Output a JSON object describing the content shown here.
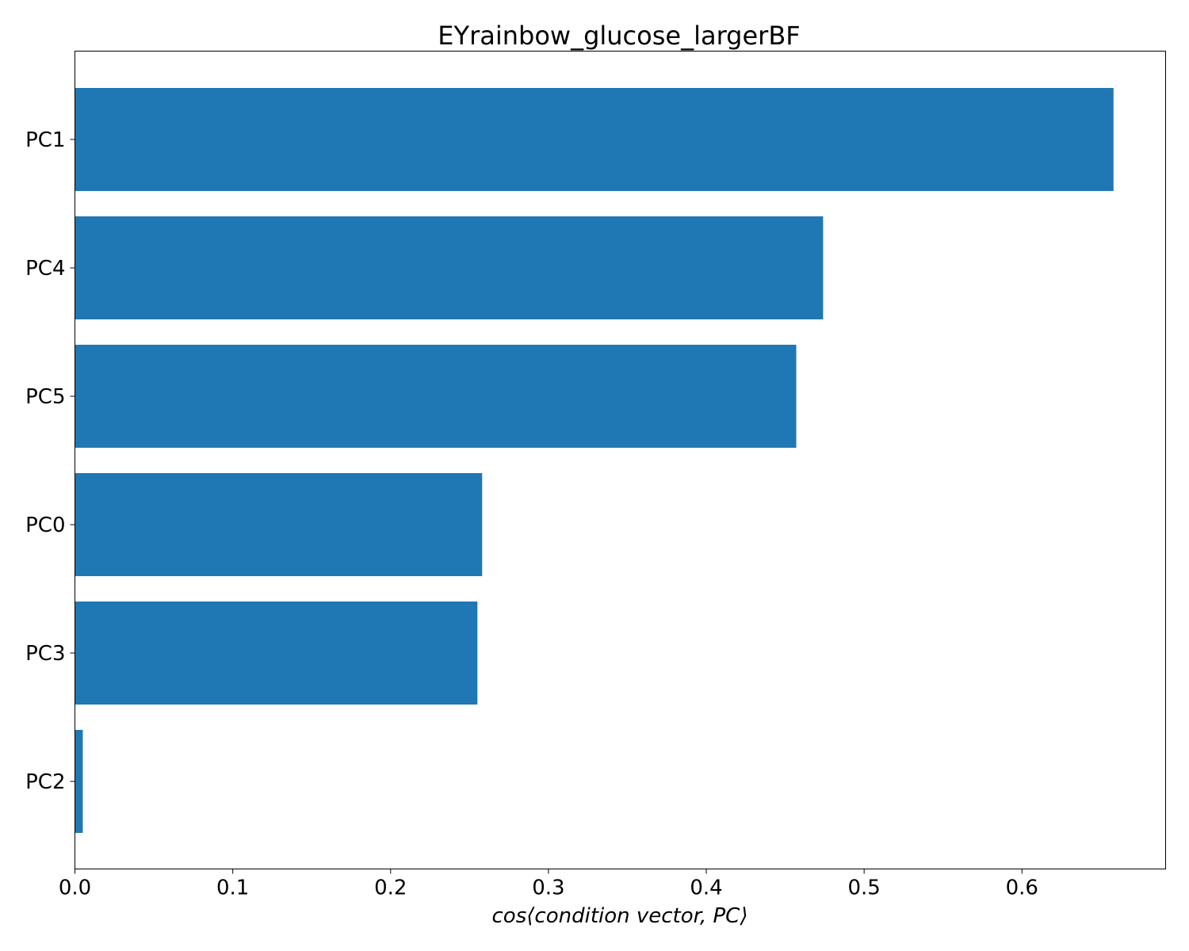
{
  "chart_data": {
    "type": "bar",
    "orientation": "horizontal",
    "title": "EYrainbow_glucose_largerBF",
    "xlabel": "cos⟨condition vector, PC⟩",
    "ylabel": "",
    "categories": [
      "PC1",
      "PC4",
      "PC5",
      "PC0",
      "PC3",
      "PC2"
    ],
    "values": [
      0.658,
      0.474,
      0.457,
      0.258,
      0.255,
      0.005
    ],
    "xlim": [
      0.0,
      0.691
    ],
    "xticks": [
      0.0,
      0.1,
      0.2,
      0.3,
      0.4,
      0.5,
      0.6
    ],
    "xtick_labels": [
      "0.0",
      "0.1",
      "0.2",
      "0.3",
      "0.4",
      "0.5",
      "0.6"
    ],
    "bar_color": "#1f77b4",
    "grid": false
  }
}
